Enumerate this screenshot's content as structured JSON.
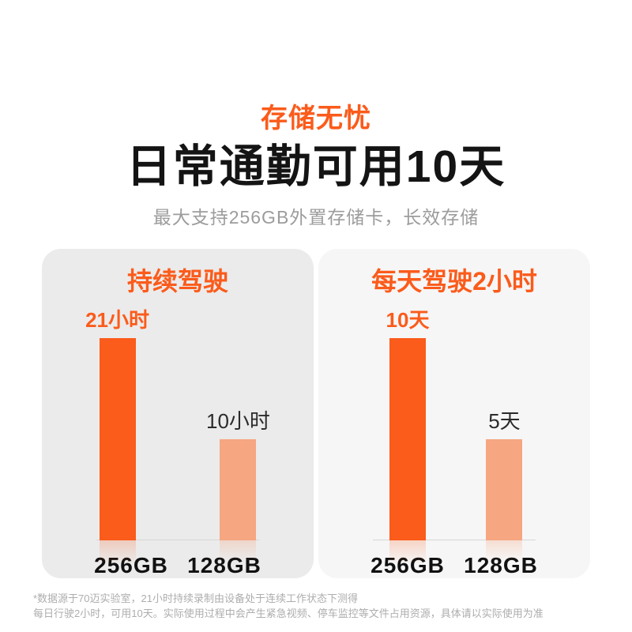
{
  "page": {
    "eyebrow": "存储无忧",
    "title": "日常通勤可用10天",
    "subtitle": "最大支持256GB外置存储卡，长效存储",
    "footnote_line1": "*数据源于70迈实验室，21小时持续录制由设备处于连续工作状态下测得",
    "footnote_line2": "每日行驶2小时，可用10天。实际使用过程中会产生紧急视频、停车监控等文件占用资源，具体请以实际使用为准"
  },
  "colors": {
    "accent_orange": "#FB5B1B",
    "light_orange": "#F6A681",
    "panel_left_bg": "#EBEBEB",
    "panel_right_bg": "#F6F6F6",
    "title_black": "#141414",
    "subtitle_gray": "#9C9C9C",
    "footnote_gray": "#ADADAD",
    "baseline_gray": "#D7D7D7"
  },
  "chart_data": [
    {
      "type": "bar",
      "title": "持续驾驶",
      "categories": [
        "256GB",
        "128GB"
      ],
      "values": [
        21,
        10
      ],
      "unit": "小时",
      "value_labels": [
        "21小时",
        "10小时"
      ],
      "bar_colors": [
        "#FB5B1B",
        "#F6A681"
      ],
      "xlabel": "",
      "ylabel": "",
      "grid": false,
      "legend": "none",
      "baseline": true
    },
    {
      "type": "bar",
      "title": "每天驾驶2小时",
      "categories": [
        "256GB",
        "128GB"
      ],
      "values": [
        10,
        5
      ],
      "unit": "天",
      "value_labels": [
        "10天",
        "5天"
      ],
      "bar_colors": [
        "#FB5B1B",
        "#F6A681"
      ],
      "xlabel": "",
      "ylabel": "",
      "grid": false,
      "legend": "none",
      "baseline": true
    }
  ]
}
